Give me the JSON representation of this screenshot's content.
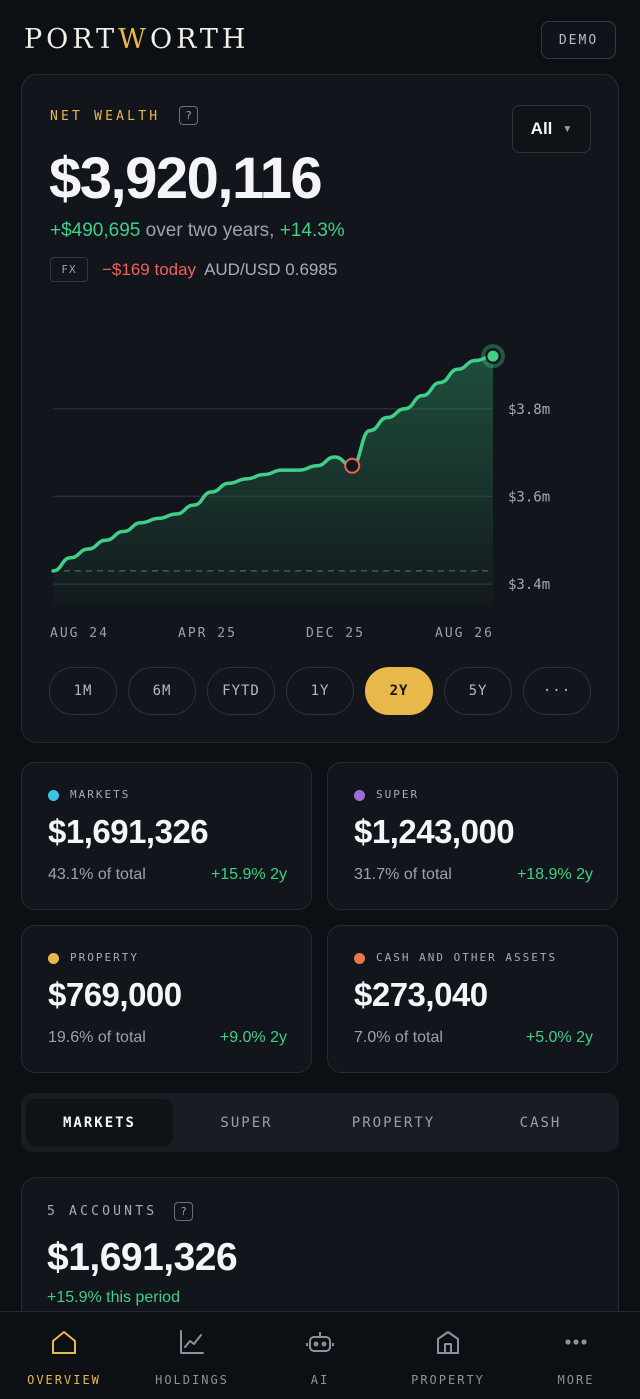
{
  "header": {
    "logo_pre": "PORT",
    "logo_accent": "W",
    "logo_post": "ORTH",
    "demo_label": "DEMO"
  },
  "wealth": {
    "label": "NET WEALTH",
    "help": "?",
    "range_select": "All",
    "value": "$3,920,116",
    "change_amount": "+$490,695",
    "change_text": " over two years, ",
    "change_pct": "+14.3%",
    "fx_badge": "FX",
    "fx_today": "−$169 today",
    "fx_rate": "AUD/USD 0.6985"
  },
  "chart_data": {
    "type": "area",
    "x_tick_labels": [
      "AUG 24",
      "APR 25",
      "DEC 25",
      "AUG 26"
    ],
    "y_tick_labels": [
      "$3.8m",
      "$3.6m",
      "$3.4m"
    ],
    "y_ticks": [
      3.8,
      3.6,
      3.4
    ],
    "ylim": [
      3.35,
      3.95
    ],
    "baseline": 3.43,
    "series": [
      {
        "values": [
          3.43,
          3.46,
          3.48,
          3.5,
          3.52,
          3.54,
          3.55,
          3.56,
          3.58,
          3.61,
          3.63,
          3.64,
          3.65,
          3.66,
          3.66,
          3.67,
          3.69,
          3.67,
          3.75,
          3.78,
          3.8,
          3.83,
          3.86,
          3.89,
          3.91,
          3.92
        ]
      }
    ],
    "markers": [
      {
        "index": 17,
        "color": "#f0605a"
      },
      {
        "index": 25,
        "color": "#3fcf86"
      }
    ],
    "grid": true,
    "line_color": "#3fcf86"
  },
  "periods": [
    "1M",
    "6M",
    "FYTD",
    "1Y",
    "2Y",
    "5Y",
    "···"
  ],
  "active_period": "2Y",
  "stats": [
    {
      "label": "MARKETS",
      "value": "$1,691,326",
      "pct": "43.1% of total",
      "gain": "+15.9% 2y",
      "color": "#38c6e6"
    },
    {
      "label": "SUPER",
      "value": "$1,243,000",
      "pct": "31.7% of total",
      "gain": "+18.9% 2y",
      "color": "#9b6fd6"
    },
    {
      "label": "PROPERTY",
      "value": "$769,000",
      "pct": "19.6% of total",
      "gain": "+9.0% 2y",
      "color": "#e8b94a"
    },
    {
      "label": "CASH AND OTHER ASSETS",
      "value": "$273,040",
      "pct": "7.0% of total",
      "gain": "+5.0% 2y",
      "color": "#e8794a"
    }
  ],
  "tabs": [
    "MARKETS",
    "SUPER",
    "PROPERTY",
    "CASH"
  ],
  "accounts": {
    "label": "5 ACCOUNTS",
    "help": "?",
    "value": "$1,691,326",
    "change": "+15.9% this period"
  },
  "nav": [
    {
      "label": "OVERVIEW",
      "icon": "home-icon"
    },
    {
      "label": "HOLDINGS",
      "icon": "chart-line-icon"
    },
    {
      "label": "AI",
      "icon": "robot-icon"
    },
    {
      "label": "PROPERTY",
      "icon": "building-icon"
    },
    {
      "label": "MORE",
      "icon": "more-dots-icon"
    }
  ]
}
